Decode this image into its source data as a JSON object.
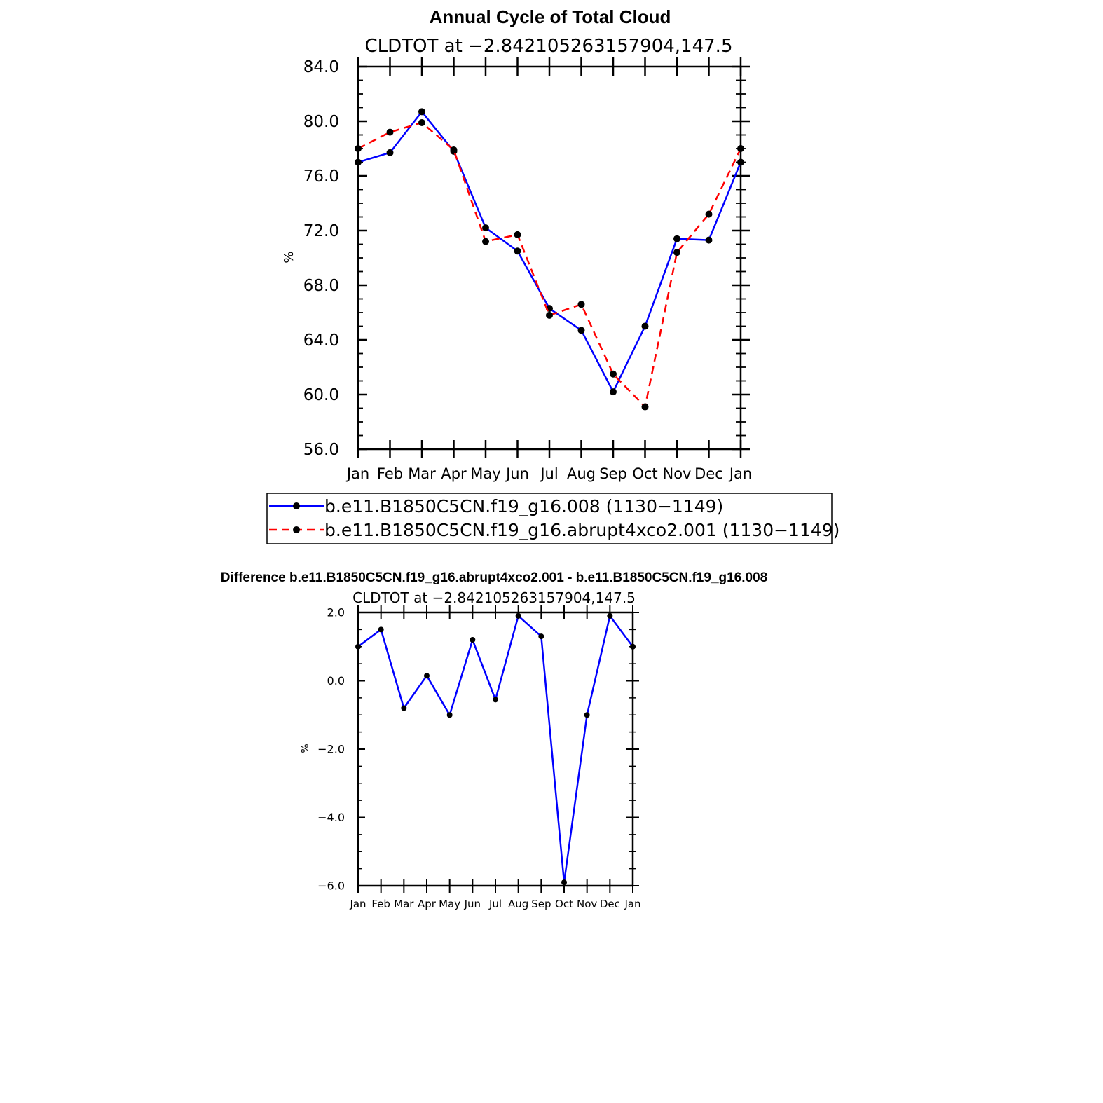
{
  "chart_data": [
    {
      "type": "line",
      "title": "Annual Cycle of Total Cloud",
      "subtitle": "CLDTOT at −2.842105263157904,147.5",
      "xlabel": "",
      "ylabel": "%",
      "categories": [
        "Jan",
        "Feb",
        "Mar",
        "Apr",
        "May",
        "Jun",
        "Jul",
        "Aug",
        "Sep",
        "Oct",
        "Nov",
        "Dec",
        "Jan"
      ],
      "ylim": [
        56,
        84
      ],
      "yticks": [
        "56.0",
        "60.0",
        "64.0",
        "68.0",
        "72.0",
        "76.0",
        "80.0",
        "84.0"
      ],
      "grid": false,
      "legend_position": "bottom",
      "series": [
        {
          "name": "b.e11.B1850C5CN.f19_g16.008 (1130−1149)",
          "color": "#0000ff",
          "dash": "solid",
          "values": [
            77.0,
            77.7,
            80.7,
            77.8,
            72.2,
            70.5,
            66.3,
            64.7,
            60.2,
            65.0,
            71.4,
            71.3,
            77.0
          ]
        },
        {
          "name": "b.e11.B1850C5CN.f19_g16.abrupt4xco2.001 (1130−1149)",
          "color": "#ff0000",
          "dash": "dashed",
          "values": [
            78.0,
            79.2,
            79.9,
            77.9,
            71.2,
            71.7,
            65.8,
            66.6,
            61.5,
            59.1,
            70.4,
            73.2,
            78.0
          ]
        }
      ]
    },
    {
      "type": "line",
      "title": "Difference b.e11.B1850C5CN.f19_g16.abrupt4xco2.001 - b.e11.B1850C5CN.f19_g16.008",
      "subtitle": "CLDTOT at −2.842105263157904,147.5",
      "xlabel": "",
      "ylabel": "%",
      "categories": [
        "Jan",
        "Feb",
        "Mar",
        "Apr",
        "May",
        "Jun",
        "Jul",
        "Aug",
        "Sep",
        "Oct",
        "Nov",
        "Dec",
        "Jan"
      ],
      "ylim": [
        -6,
        2
      ],
      "yticks": [
        "−6.0",
        "−4.0",
        "−2.0",
        "0.0",
        "2.0"
      ],
      "grid": false,
      "series": [
        {
          "color": "#0000ff",
          "dash": "solid",
          "values": [
            1.0,
            1.5,
            -0.8,
            0.15,
            -1.0,
            1.2,
            -0.55,
            1.9,
            1.3,
            -5.9,
            -1.0,
            1.9,
            1.0
          ]
        }
      ]
    }
  ]
}
